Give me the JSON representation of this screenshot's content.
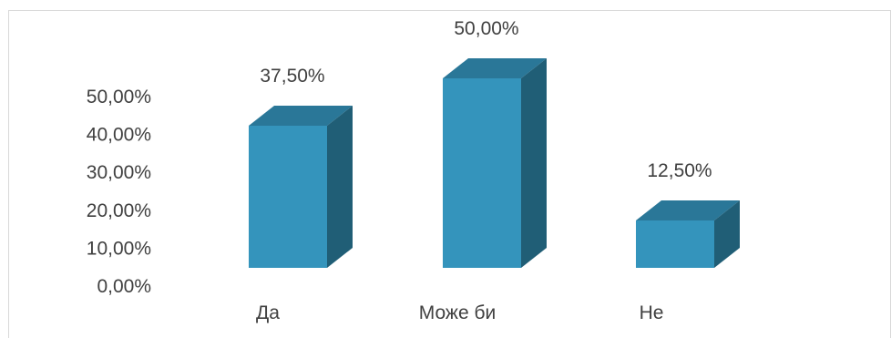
{
  "chart_data": {
    "type": "bar",
    "style": "3d-column",
    "categories": [
      "Да",
      "Може би",
      "Не"
    ],
    "values": [
      37.5,
      50.0,
      12.5
    ],
    "data_labels": [
      "37,50%",
      "50,00%",
      "12,50%"
    ],
    "y_ticks": [
      "0,00%",
      "10,00%",
      "20,00%",
      "30,00%",
      "40,00%",
      "50,00%"
    ],
    "y_tick_values": [
      0,
      10,
      20,
      30,
      40,
      50
    ],
    "ylim": [
      0,
      50
    ],
    "grid": false,
    "legend": "none",
    "colors": {
      "front": "#3494bc",
      "side": "#205e76",
      "top": "#2a7798",
      "frame": "#d9d9d9",
      "text": "#404040"
    }
  }
}
